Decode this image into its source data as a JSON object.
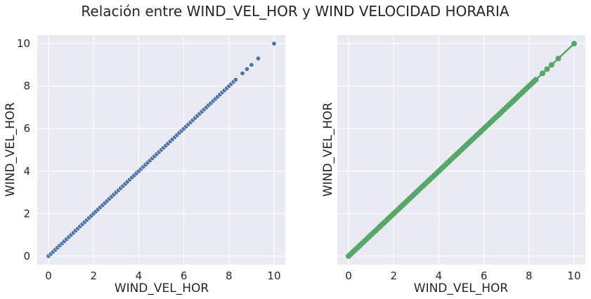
{
  "title": "Relación entre WIND_VEL_HOR y WIND VELOCIDAD HORARIA",
  "colors": {
    "background": "#eaeaf2",
    "grid": "#ffffff",
    "text": "#262626",
    "scatter": "#4c72b0",
    "line": "#55a868"
  },
  "chart_data": [
    {
      "type": "scatter",
      "xlabel": "WIND_VEL_HOR",
      "ylabel": "WIND_VEL_HOR",
      "xlim": [
        -0.5,
        10.5
      ],
      "ylim": [
        -0.4,
        10.4
      ],
      "xticks": [
        0,
        2,
        4,
        6,
        8,
        10
      ],
      "yticks": [
        0,
        2,
        4,
        6,
        8,
        10
      ],
      "grid": true,
      "series": [
        {
          "color": "#4c72b0",
          "x_range": [
            0,
            8.3
          ],
          "step": 0.1,
          "extra_points": [
            8.6,
            8.8,
            9.0,
            9.3,
            10.0
          ]
        }
      ]
    },
    {
      "type": "line",
      "xlabel": "WIND_VEL_HOR",
      "ylabel": "WIND_VEL_HOR",
      "xlim": [
        -0.5,
        10.5
      ],
      "ylim": [
        -0.4,
        10.4
      ],
      "xticks": [
        0,
        2,
        4,
        6,
        8,
        10
      ],
      "yticks": [],
      "grid": true,
      "series": [
        {
          "color": "#55a868",
          "x_range": [
            0,
            8.3
          ],
          "step": 0.1,
          "extra_points": [
            8.6,
            8.8,
            9.0,
            9.3,
            10.0
          ]
        }
      ]
    }
  ]
}
